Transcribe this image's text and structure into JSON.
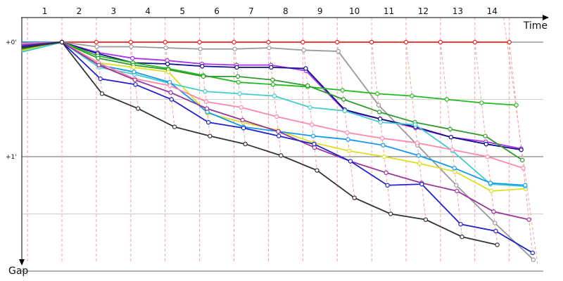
{
  "chart_data": {
    "type": "line",
    "x_axis_title": "Time",
    "y_axis_title": "Gap",
    "lap_labels": [
      "1",
      "2",
      "3",
      "4",
      "5",
      "6",
      "7",
      "8",
      "9",
      "10",
      "11",
      "12",
      "13",
      "14"
    ],
    "y_ticks": [
      {
        "value": 0,
        "label": "+0'"
      },
      {
        "value": 1,
        "label": "+1'"
      }
    ],
    "y_unit": "minutes",
    "grid": true,
    "series": [
      {
        "color": "#ee2222",
        "values": [
          0.0,
          0.0,
          0.0,
          0.0,
          0.0,
          0.0,
          0.0,
          0.0,
          0.0,
          0.0,
          0.0,
          0.0,
          0.0,
          0.0
        ]
      },
      {
        "color": "#999999",
        "values": [
          0.0,
          0.04,
          0.04,
          0.05,
          0.06,
          0.06,
          0.05,
          0.07,
          0.08,
          0.55,
          0.9,
          1.25,
          1.58,
          1.9
        ]
      },
      {
        "color": "#aa33ee",
        "values": [
          0.0,
          0.09,
          0.14,
          0.16,
          0.19,
          0.2,
          0.2,
          0.25,
          0.6,
          0.67,
          0.75,
          0.83,
          0.87,
          0.93
        ]
      },
      {
        "color": "#111188",
        "values": [
          0.0,
          0.1,
          0.18,
          0.19,
          0.21,
          0.22,
          0.22,
          0.23,
          0.59,
          0.67,
          0.74,
          0.83,
          0.89,
          0.94
        ]
      },
      {
        "color": "#22bb22",
        "values": [
          0.0,
          0.12,
          0.18,
          0.23,
          0.29,
          0.35,
          0.37,
          0.39,
          0.42,
          0.45,
          0.47,
          0.5,
          0.53,
          0.55
        ]
      },
      {
        "color": "#2e9a2e",
        "values": [
          0.0,
          0.14,
          0.2,
          0.24,
          0.3,
          0.3,
          0.33,
          0.38,
          0.5,
          0.61,
          0.7,
          0.76,
          0.82,
          1.03
        ]
      },
      {
        "color": "#dddd22",
        "values": [
          0.0,
          0.18,
          0.22,
          0.26,
          0.62,
          0.7,
          0.77,
          0.88,
          0.95,
          1.0,
          1.06,
          1.13,
          1.3,
          1.28
        ]
      },
      {
        "color": "#44cccc",
        "values": [
          0.0,
          0.22,
          0.28,
          0.36,
          0.43,
          0.45,
          0.47,
          0.57,
          0.6,
          0.7,
          0.72,
          0.95,
          1.24,
          1.26
        ]
      },
      {
        "color": "#1199ee",
        "values": [
          0.0,
          0.2,
          0.26,
          0.35,
          0.61,
          0.74,
          0.78,
          0.82,
          0.85,
          0.9,
          0.99,
          1.1,
          1.23,
          1.25
        ]
      },
      {
        "color": "#ff88aa",
        "values": [
          0.0,
          0.18,
          0.32,
          0.38,
          0.52,
          0.57,
          0.65,
          0.72,
          0.79,
          0.84,
          0.88,
          0.94,
          1.0,
          1.1
        ]
      },
      {
        "color": "#993399",
        "values": [
          0.0,
          0.2,
          0.33,
          0.44,
          0.58,
          0.68,
          0.78,
          0.92,
          1.04,
          1.14,
          1.23,
          1.3,
          1.48,
          1.55
        ]
      },
      {
        "color": "#2222cc",
        "values": [
          0.0,
          0.32,
          0.37,
          0.5,
          0.7,
          0.75,
          0.82,
          0.89,
          1.04,
          1.25,
          1.24,
          1.59,
          1.65,
          1.84
        ]
      },
      {
        "color": "#333333",
        "values": [
          0.0,
          0.45,
          0.58,
          0.74,
          0.82,
          0.89,
          0.99,
          1.12,
          1.36,
          1.5,
          1.55,
          1.7,
          1.77
        ]
      }
    ]
  }
}
